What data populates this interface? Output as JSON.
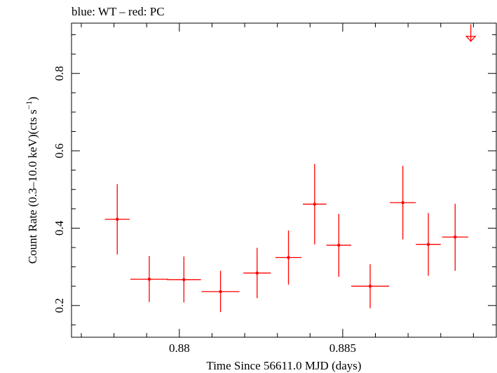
{
  "chart_data": {
    "type": "scatter",
    "title": "blue: WT – red: PC",
    "xlabel": "Time Since 56611.0 MJD (days)",
    "ylabel_main": "Count Rate (0.3–10.0 keV)(cts s",
    "ylabel_sup": "−1",
    "ylabel_end": ")",
    "xlim": [
      0.8767,
      0.8897
    ],
    "ylim": [
      0.118,
      0.93
    ],
    "x_ticks": [
      {
        "value": 0.88,
        "label": "0.88"
      },
      {
        "value": 0.885,
        "label": "0.885"
      }
    ],
    "x_minor_ticks": [
      0.877,
      0.878,
      0.879,
      0.881,
      0.882,
      0.883,
      0.884,
      0.886,
      0.887,
      0.888,
      0.889
    ],
    "y_ticks": [
      {
        "value": 0.2,
        "label": "0.2"
      },
      {
        "value": 0.4,
        "label": "0.4"
      },
      {
        "value": 0.6,
        "label": "0.6"
      },
      {
        "value": 0.8,
        "label": "0.8"
      }
    ],
    "y_minor_ticks": [
      0.15,
      0.25,
      0.3,
      0.35,
      0.45,
      0.5,
      0.55,
      0.65,
      0.7,
      0.75,
      0.85,
      0.9
    ],
    "series": [
      {
        "color": "#ff0000",
        "points": [
          {
            "x": 0.8781,
            "xerr": 0.00038,
            "y": 0.423,
            "ylo": 0.332,
            "yhi": 0.514
          },
          {
            "x": 0.87908,
            "xerr": 0.00058,
            "y": 0.268,
            "ylo": 0.209,
            "yhi": 0.328
          },
          {
            "x": 0.88014,
            "xerr": 0.00052,
            "y": 0.267,
            "ylo": 0.208,
            "yhi": 0.327
          },
          {
            "x": 0.88126,
            "xerr": 0.00058,
            "y": 0.236,
            "ylo": 0.183,
            "yhi": 0.29
          },
          {
            "x": 0.88238,
            "xerr": 0.00042,
            "y": 0.284,
            "ylo": 0.219,
            "yhi": 0.349
          },
          {
            "x": 0.88334,
            "xerr": 0.0004,
            "y": 0.324,
            "ylo": 0.254,
            "yhi": 0.394
          },
          {
            "x": 0.88414,
            "xerr": 0.00036,
            "y": 0.462,
            "ylo": 0.358,
            "yhi": 0.566
          },
          {
            "x": 0.88488,
            "xerr": 0.00038,
            "y": 0.356,
            "ylo": 0.274,
            "yhi": 0.437
          },
          {
            "x": 0.88584,
            "xerr": 0.00058,
            "y": 0.25,
            "ylo": 0.193,
            "yhi": 0.307
          },
          {
            "x": 0.88684,
            "xerr": 0.0004,
            "y": 0.466,
            "ylo": 0.371,
            "yhi": 0.561
          },
          {
            "x": 0.88762,
            "xerr": 0.00038,
            "y": 0.358,
            "ylo": 0.277,
            "yhi": 0.439
          },
          {
            "x": 0.88844,
            "xerr": 0.0004,
            "y": 0.377,
            "ylo": 0.29,
            "yhi": 0.463
          }
        ],
        "upper_limits": [
          {
            "x": 0.88892,
            "y": 0.883
          }
        ]
      }
    ]
  }
}
